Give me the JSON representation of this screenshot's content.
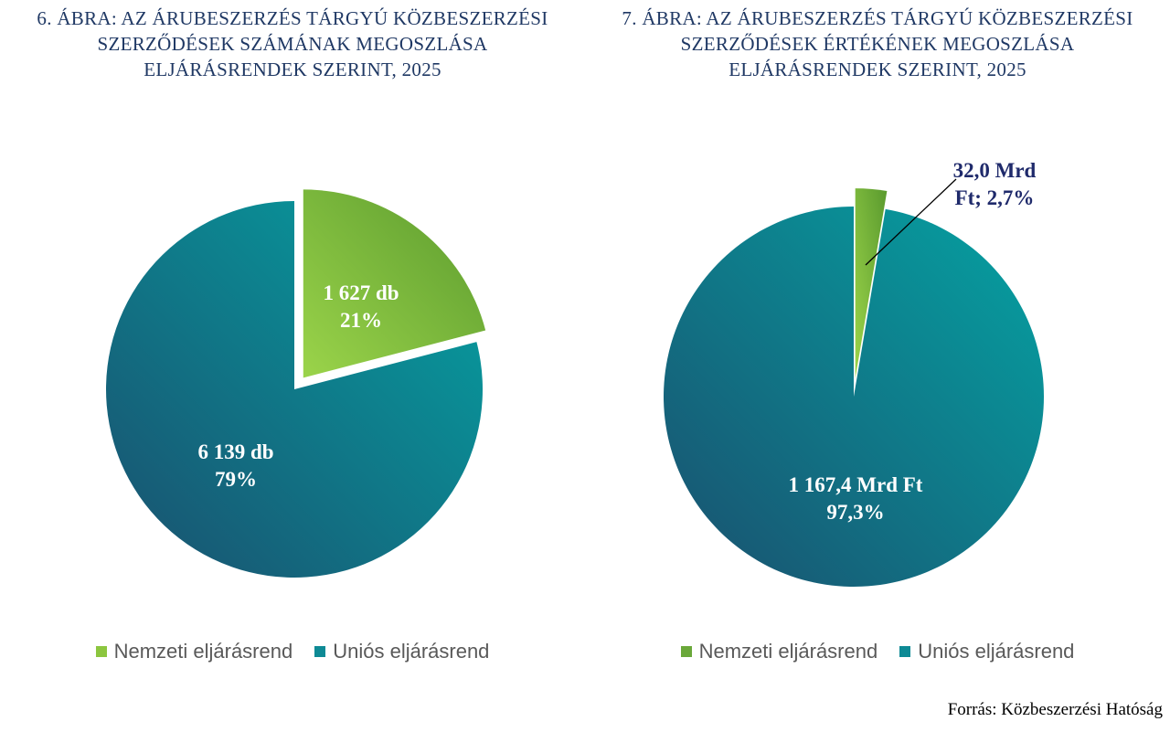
{
  "colors": {
    "nemzeti_light": "#9bd44a",
    "nemzeti_dark": "#5a9a2e",
    "unios_light": "#05a3a3",
    "unios_dark": "#1a4f6e",
    "title": "#1f3864",
    "callout": "#1f2a6b"
  },
  "chart_data": [
    {
      "type": "pie",
      "title_lines": [
        "6. ÁBRA: AZ ÁRUBESZERZÉS TÁRGYÚ KÖZBESZERZÉSI",
        "SZERZŐDÉSEK SZÁMÁNAK MEGOSZLÁSA",
        "ELJÁRÁSRENDEK SZERINT, 2025"
      ],
      "slices": [
        {
          "name": "Nemzeti eljárásrend",
          "value": 1627,
          "percent": 21,
          "label_line1": "1 627 db",
          "label_line2": "21%",
          "exploded": true
        },
        {
          "name": "Uniós eljárásrend",
          "value": 6139,
          "percent": 79,
          "label_line1": "6 139 db",
          "label_line2": "79%",
          "exploded": false
        }
      ],
      "legend": [
        "Nemzeti eljárásrend",
        "Uniós eljárásrend"
      ],
      "legend_placement": "bottom"
    },
    {
      "type": "pie",
      "title_lines": [
        "7. ÁBRA: AZ ÁRUBESZERZÉS TÁRGYÚ KÖZBESZERZÉSI",
        "SZERZŐDÉSEK ÉRTÉKÉNEK MEGOSZLÁSA",
        "ELJÁRÁSRENDEK SZERINT, 2025"
      ],
      "slices": [
        {
          "name": "Nemzeti eljárásrend",
          "value": 32.0,
          "percent": 2.7,
          "label_line1": "32,0 Mrd",
          "label_line2": "Ft; 2,7%",
          "exploded": true
        },
        {
          "name": "Uniós eljárásrend",
          "value": 1167.4,
          "percent": 97.3,
          "label_line1": "1 167,4 Mrd Ft",
          "label_line2": "97,3%",
          "exploded": false
        }
      ],
      "legend": [
        "Nemzeti eljárásrend",
        "Uniós eljárásrend"
      ],
      "legend_placement": "bottom"
    }
  ],
  "source": "Forrás: Közbeszerzési Hatóság"
}
